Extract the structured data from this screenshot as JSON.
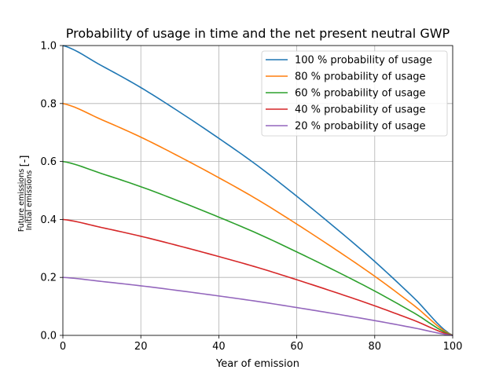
{
  "chart_data": {
    "type": "line",
    "title": "Probability of usage in time and the net present neutral GWP",
    "xlabel": "Year of emission",
    "ylabel": {
      "numerator": "Future emissions",
      "denominator": "Initial emissions",
      "unit": "[-]"
    },
    "xlim": [
      0,
      100
    ],
    "ylim": [
      0.0,
      1.0
    ],
    "xticks": [
      0,
      20,
      40,
      60,
      80,
      100
    ],
    "xtick_labels": [
      "0",
      "20",
      "40",
      "60",
      "80",
      "100"
    ],
    "yticks": [
      0.0,
      0.2,
      0.4,
      0.6,
      0.8,
      1.0
    ],
    "ytick_labels": [
      "0.0",
      "0.2",
      "0.4",
      "0.6",
      "0.8",
      "1.0"
    ],
    "grid": true,
    "legend_position": "top-right",
    "x": [
      0,
      10,
      20,
      30,
      40,
      50,
      60,
      70,
      80,
      90,
      100
    ],
    "series": [
      {
        "name": "100 % probability of usage",
        "color": "#1f77b4",
        "values": [
          1.0,
          0.93,
          0.855,
          0.77,
          0.68,
          0.585,
          0.48,
          0.37,
          0.255,
          0.13,
          0.0
        ]
      },
      {
        "name": "80 % probability of usage",
        "color": "#ff7f0e",
        "values": [
          0.8,
          0.744,
          0.684,
          0.616,
          0.544,
          0.468,
          0.384,
          0.296,
          0.204,
          0.104,
          0.0
        ]
      },
      {
        "name": "60 % probability of usage",
        "color": "#2ca02c",
        "values": [
          0.6,
          0.558,
          0.513,
          0.462,
          0.408,
          0.351,
          0.288,
          0.222,
          0.153,
          0.078,
          0.0
        ]
      },
      {
        "name": "40 % probability of usage",
        "color": "#d62728",
        "values": [
          0.4,
          0.372,
          0.342,
          0.308,
          0.272,
          0.234,
          0.192,
          0.148,
          0.102,
          0.052,
          0.0
        ]
      },
      {
        "name": "20 % probability of usage",
        "color": "#9467bd",
        "values": [
          0.2,
          0.186,
          0.171,
          0.154,
          0.136,
          0.117,
          0.096,
          0.074,
          0.051,
          0.026,
          0.0
        ]
      }
    ]
  }
}
